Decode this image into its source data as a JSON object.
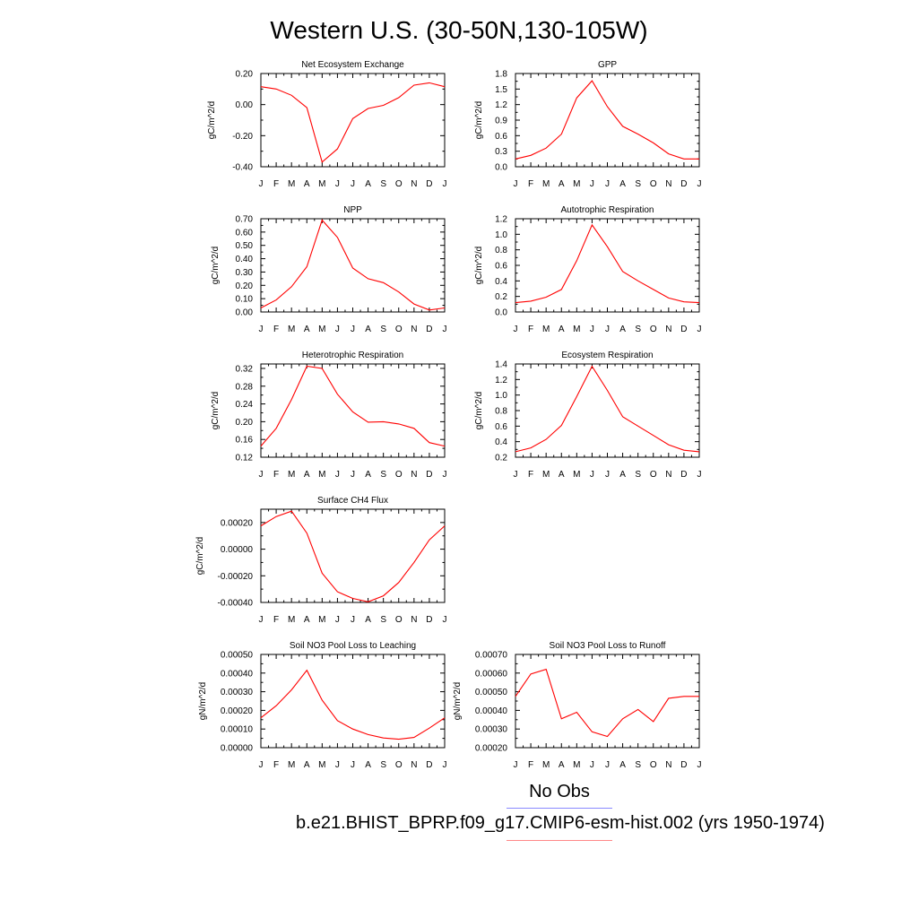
{
  "title": "Western U.S. (30-50N,130-105W)",
  "legend": {
    "obs_label": "No Obs",
    "obs_color": "#8888ff",
    "model_label": "b.e21.BHIST_BPRP.f09_g17.CMIP6-esm-hist.002 (yrs 1950-1974)",
    "model_color": "#ff8888"
  },
  "line_color": "#ff0000",
  "chart_data": [
    {
      "type": "line",
      "title": "Net Ecosystem Exchange",
      "ylabel": "gC/m^2/d",
      "categories": [
        "J",
        "F",
        "M",
        "A",
        "M",
        "J",
        "J",
        "A",
        "S",
        "O",
        "N",
        "D",
        "J"
      ],
      "ylim": [
        -0.4,
        0.2
      ],
      "yticks": [
        -0.4,
        -0.2,
        0.0,
        0.2
      ],
      "ytick_labels": [
        "-0.40",
        "-0.20",
        "0.00",
        "0.20"
      ],
      "values": [
        0.115,
        0.1,
        0.06,
        -0.02,
        -0.37,
        -0.285,
        -0.09,
        -0.025,
        -0.005,
        0.045,
        0.125,
        0.14,
        0.115
      ]
    },
    {
      "type": "line",
      "title": "GPP",
      "ylabel": "gC/m^2/d",
      "categories": [
        "J",
        "F",
        "M",
        "A",
        "M",
        "J",
        "J",
        "A",
        "S",
        "O",
        "N",
        "D",
        "J"
      ],
      "ylim": [
        0.0,
        1.8
      ],
      "yticks": [
        0.0,
        0.3,
        0.6,
        0.9,
        1.2,
        1.5,
        1.8
      ],
      "ytick_labels": [
        "0.0",
        "0.3",
        "0.6",
        "0.9",
        "1.2",
        "1.5",
        "1.8"
      ],
      "values": [
        0.15,
        0.22,
        0.36,
        0.63,
        1.33,
        1.66,
        1.16,
        0.78,
        0.63,
        0.46,
        0.25,
        0.15,
        0.15
      ]
    },
    {
      "type": "line",
      "title": "NPP",
      "ylabel": "gC/m^2/d",
      "categories": [
        "J",
        "F",
        "M",
        "A",
        "M",
        "J",
        "J",
        "A",
        "S",
        "O",
        "N",
        "D",
        "J"
      ],
      "ylim": [
        0.0,
        0.7
      ],
      "yticks": [
        0.0,
        0.1,
        0.2,
        0.3,
        0.4,
        0.5,
        0.6,
        0.7
      ],
      "ytick_labels": [
        "0.00",
        "0.10",
        "0.20",
        "0.30",
        "0.40",
        "0.50",
        "0.60",
        "0.70"
      ],
      "values": [
        0.03,
        0.09,
        0.19,
        0.34,
        0.69,
        0.56,
        0.33,
        0.25,
        0.22,
        0.15,
        0.06,
        0.015,
        0.03
      ]
    },
    {
      "type": "line",
      "title": "Autotrophic Respiration",
      "ylabel": "gC/m^2/d",
      "categories": [
        "J",
        "F",
        "M",
        "A",
        "M",
        "J",
        "J",
        "A",
        "S",
        "O",
        "N",
        "D",
        "J"
      ],
      "ylim": [
        0.0,
        1.2
      ],
      "yticks": [
        0.0,
        0.2,
        0.4,
        0.6,
        0.8,
        1.0,
        1.2
      ],
      "ytick_labels": [
        "0.0",
        "0.2",
        "0.4",
        "0.6",
        "0.8",
        "1.0",
        "1.2"
      ],
      "values": [
        0.12,
        0.14,
        0.19,
        0.29,
        0.66,
        1.12,
        0.84,
        0.52,
        0.4,
        0.29,
        0.18,
        0.13,
        0.12
      ]
    },
    {
      "type": "line",
      "title": "Heterotrophic Respiration",
      "ylabel": "gC/m^2/d",
      "categories": [
        "J",
        "F",
        "M",
        "A",
        "M",
        "J",
        "J",
        "A",
        "S",
        "O",
        "N",
        "D",
        "J"
      ],
      "ylim": [
        0.12,
        0.33
      ],
      "yticks": [
        0.12,
        0.16,
        0.2,
        0.24,
        0.28,
        0.32
      ],
      "ytick_labels": [
        "0.12",
        "0.16",
        "0.20",
        "0.24",
        "0.28",
        "0.32"
      ],
      "values": [
        0.145,
        0.185,
        0.25,
        0.325,
        0.32,
        0.262,
        0.222,
        0.199,
        0.2,
        0.195,
        0.185,
        0.153,
        0.145
      ]
    },
    {
      "type": "line",
      "title": "Ecosystem Respiration",
      "ylabel": "gC/m^2/d",
      "categories": [
        "J",
        "F",
        "M",
        "A",
        "M",
        "J",
        "J",
        "A",
        "S",
        "O",
        "N",
        "D",
        "J"
      ],
      "ylim": [
        0.2,
        1.4
      ],
      "yticks": [
        0.2,
        0.4,
        0.6,
        0.8,
        1.0,
        1.2,
        1.4
      ],
      "ytick_labels": [
        "0.2",
        "0.4",
        "0.6",
        "0.8",
        "1.0",
        "1.2",
        "1.4"
      ],
      "values": [
        0.27,
        0.32,
        0.43,
        0.61,
        0.98,
        1.37,
        1.06,
        0.72,
        0.6,
        0.48,
        0.36,
        0.29,
        0.27
      ]
    },
    {
      "type": "line",
      "title": "Surface CH4 Flux",
      "ylabel": "gC/m^2/d",
      "categories": [
        "J",
        "F",
        "M",
        "A",
        "M",
        "J",
        "J",
        "A",
        "S",
        "O",
        "N",
        "D",
        "J"
      ],
      "ylim": [
        -0.0004,
        0.0003
      ],
      "yticks": [
        -0.0004,
        -0.0002,
        0.0,
        0.0002
      ],
      "ytick_labels": [
        "-0.00040",
        "-0.00020",
        "0.00000",
        "0.00020"
      ],
      "values": [
        0.000175,
        0.000245,
        0.000285,
        0.00012,
        -0.00018,
        -0.00032,
        -0.00037,
        -0.000395,
        -0.00035,
        -0.00025,
        -0.0001,
        7e-05,
        0.000175
      ]
    },
    {
      "type": "line",
      "title": "Soil NO3 Pool Loss to Leaching",
      "ylabel": "gN/m^2/d",
      "categories": [
        "J",
        "F",
        "M",
        "A",
        "M",
        "J",
        "J",
        "A",
        "S",
        "O",
        "N",
        "D",
        "J"
      ],
      "ylim": [
        0.0,
        0.0005
      ],
      "yticks": [
        0.0,
        0.0001,
        0.0002,
        0.0003,
        0.0004,
        0.0005
      ],
      "ytick_labels": [
        "0.00000",
        "0.00010",
        "0.00020",
        "0.00030",
        "0.00040",
        "0.00050"
      ],
      "values": [
        0.00016,
        0.000225,
        0.00031,
        0.000415,
        0.000255,
        0.000145,
        0.0001,
        7e-05,
        5.2e-05,
        4.5e-05,
        5.5e-05,
        0.000105,
        0.00016
      ]
    },
    {
      "type": "line",
      "title": "Soil NO3 Pool Loss to Runoff",
      "ylabel": "gN/m^2/d",
      "categories": [
        "J",
        "F",
        "M",
        "A",
        "M",
        "J",
        "J",
        "A",
        "S",
        "O",
        "N",
        "D",
        "J"
      ],
      "ylim": [
        0.0002,
        0.0007
      ],
      "yticks": [
        0.0002,
        0.0003,
        0.0004,
        0.0005,
        0.0006,
        0.0007
      ],
      "ytick_labels": [
        "0.00020",
        "0.00030",
        "0.00040",
        "0.00050",
        "0.00060",
        "0.00070"
      ],
      "values": [
        0.000475,
        0.000595,
        0.00062,
        0.000355,
        0.00039,
        0.000285,
        0.00026,
        0.000355,
        0.000405,
        0.00034,
        0.000465,
        0.000475,
        0.000475
      ]
    }
  ]
}
